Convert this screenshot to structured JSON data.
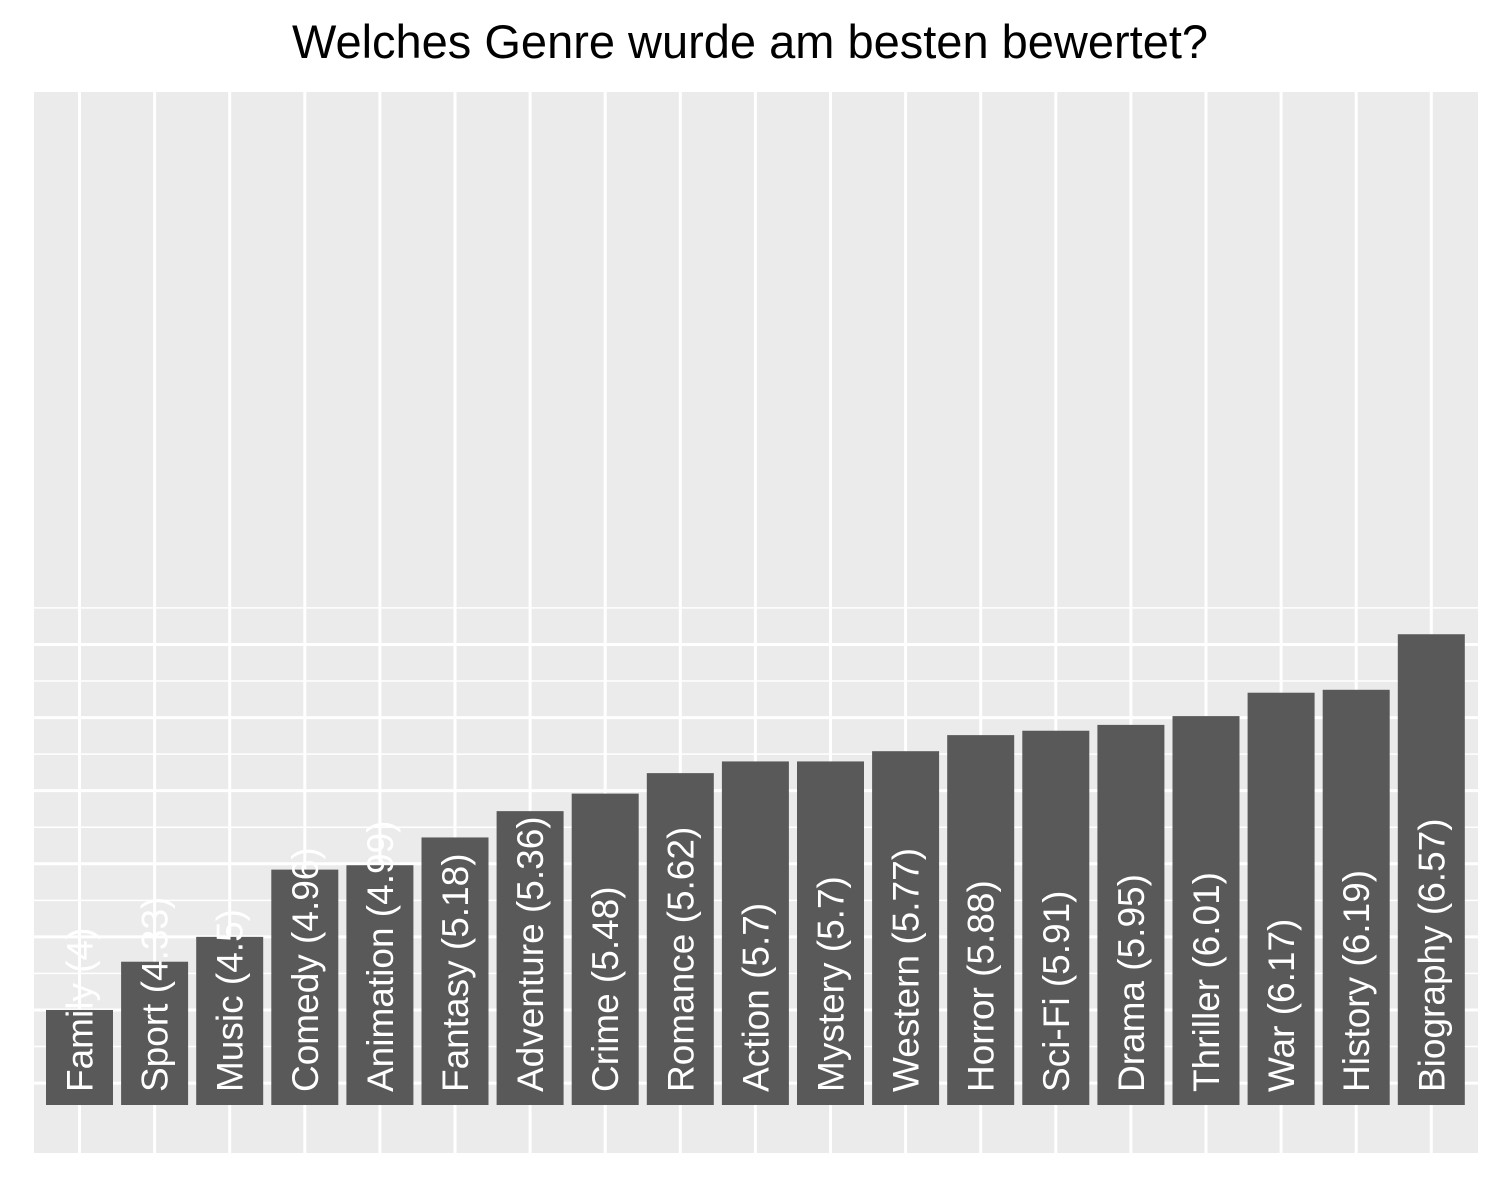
{
  "chart_data": {
    "type": "bar",
    "title": "Welches Genre wurde am besten bewertet?",
    "xlabel": "",
    "ylabel": "",
    "grid": true,
    "ylim": [
      3.35,
      6.9
    ],
    "categories": [
      "Family",
      "Sport",
      "Music",
      "Comedy",
      "Animation",
      "Fantasy",
      "Adventure",
      "Crime",
      "Romance",
      "Action",
      "Mystery",
      "Western",
      "Horror",
      "Sci-Fi",
      "Drama",
      "Thriller",
      "War",
      "History",
      "Biography"
    ],
    "values": [
      4,
      4.33,
      4.5,
      4.96,
      4.99,
      5.18,
      5.36,
      5.48,
      5.62,
      5.7,
      5.7,
      5.77,
      5.88,
      5.91,
      5.95,
      6.01,
      6.17,
      6.19,
      6.57
    ],
    "bar_labels": [
      "Family (4)",
      "Sport (4.33)",
      "Music (4.5)",
      "Comedy (4.96)",
      "Animation (4.99)",
      "Fantasy (5.18)",
      "Adventure (5.36)",
      "Crime (5.48)",
      "Romance (5.62)",
      "Action (5.7)",
      "Mystery (5.7)",
      "Western (5.77)",
      "Horror (5.88)",
      "Sci-Fi (5.91)",
      "Drama (5.95)",
      "Thriller (6.01)",
      "War (6.17)",
      "History (6.19)",
      "Biography (6.57)"
    ],
    "colors": {
      "bar": "#595959",
      "panel": "#ebebeb",
      "grid": "#ffffff",
      "label": "#ffffff"
    }
  }
}
